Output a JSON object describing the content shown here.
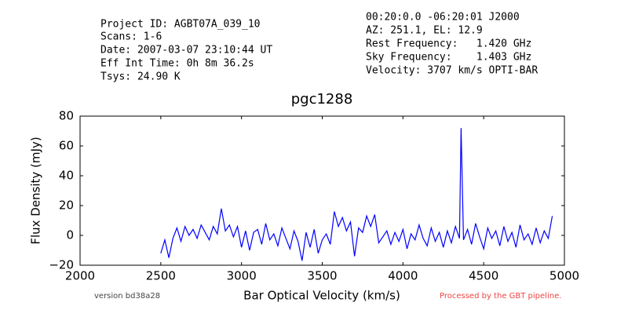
{
  "header": {
    "left": [
      "Project ID: AGBT07A_039_10",
      "Scans: 1-6",
      "Date: 2007-03-07 23:10:44 UT",
      "Eff Int Time: 0h 8m 36.2s",
      "Tsys: 24.90 K"
    ],
    "right": [
      "00:20:0.0 -06:20:01 J2000",
      "AZ: 251.1, EL: 12.9",
      "Rest Frequency:   1.420 GHz",
      "Sky Frequency:    1.403 GHz",
      "Velocity: 3707 km/s OPTI-BAR"
    ]
  },
  "footer": {
    "version": "version bd38a28",
    "pipeline": "Processed by the GBT pipeline."
  },
  "chart_data": {
    "type": "line",
    "title": "pgc1288",
    "x_label": "Bar Optical Velocity (km/s)",
    "y_label": "Flux Density (mJy)",
    "xlim": [
      2000,
      5000
    ],
    "ylim": [
      -20,
      80
    ],
    "xticks": [
      2000,
      2500,
      3000,
      3500,
      4000,
      4500,
      5000
    ],
    "yticks": [
      {
        "value": -20,
        "label": "−20"
      },
      0,
      20,
      40,
      60,
      80
    ],
    "x": [
      2500,
      2525,
      2550,
      2575,
      2600,
      2625,
      2650,
      2675,
      2700,
      2725,
      2750,
      2775,
      2800,
      2825,
      2850,
      2875,
      2900,
      2925,
      2950,
      2975,
      3000,
      3025,
      3050,
      3075,
      3100,
      3125,
      3150,
      3175,
      3200,
      3225,
      3250,
      3275,
      3300,
      3325,
      3350,
      3375,
      3400,
      3425,
      3450,
      3475,
      3500,
      3525,
      3550,
      3575,
      3600,
      3625,
      3650,
      3675,
      3700,
      3725,
      3750,
      3775,
      3800,
      3825,
      3850,
      3875,
      3900,
      3925,
      3950,
      3975,
      4000,
      4025,
      4050,
      4075,
      4100,
      4125,
      4150,
      4175,
      4200,
      4225,
      4250,
      4275,
      4300,
      4325,
      4350,
      4360,
      4375,
      4400,
      4425,
      4450,
      4475,
      4500,
      4525,
      4550,
      4575,
      4600,
      4625,
      4650,
      4675,
      4700,
      4725,
      4750,
      4775,
      4800,
      4825,
      4850,
      4875,
      4900,
      4925
    ],
    "series": [
      {
        "color": "#0000ff",
        "values": [
          -12,
          -3,
          -15,
          -2,
          5,
          -4,
          6,
          0,
          4,
          -2,
          7,
          2,
          -3,
          6,
          1,
          18,
          3,
          7,
          -1,
          6,
          -8,
          3,
          -10,
          2,
          4,
          -6,
          8,
          -3,
          1,
          -7,
          5,
          -2,
          -9,
          3,
          -4,
          -17,
          2,
          -8,
          4,
          -12,
          -3,
          1,
          -6,
          16,
          6,
          12,
          3,
          9,
          -14,
          5,
          2,
          13,
          6,
          14,
          -5,
          -1,
          3,
          -6,
          2,
          -4,
          4,
          -9,
          1,
          -3,
          7,
          -2,
          -7,
          5,
          -4,
          2,
          -8,
          3,
          -5,
          6,
          -2,
          72,
          -3,
          4,
          -6,
          8,
          -1,
          -9,
          5,
          -2,
          3,
          -7,
          6,
          -4,
          2,
          -8,
          7,
          -3,
          1,
          -6,
          5,
          -5,
          3,
          -2,
          13
        ]
      }
    ]
  }
}
